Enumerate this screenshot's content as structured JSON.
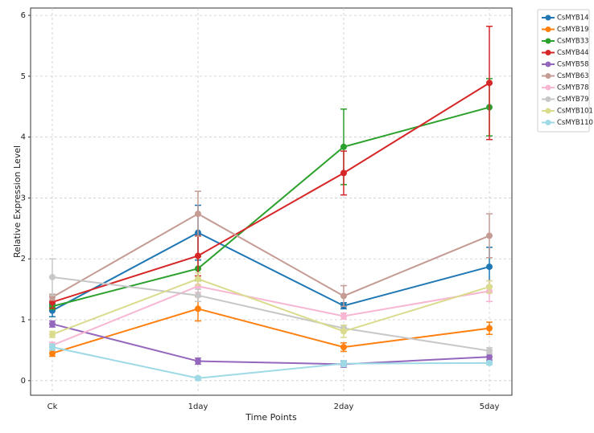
{
  "chart_data": {
    "type": "line",
    "x_label": "Time Points",
    "y_label": "Relative Expression Level",
    "categories": [
      "Ck",
      "1day",
      "2day",
      "5day"
    ],
    "ylim": [
      -0.24,
      6.12
    ],
    "yticks": [
      0,
      1,
      2,
      3,
      4,
      5,
      6
    ],
    "grid": true,
    "legend": "outside-right",
    "series": [
      {
        "name": "CsMYB14",
        "color": "#1f77b4",
        "values": [
          1.15,
          2.43,
          1.23,
          1.87
        ],
        "errors": [
          0.1,
          0.45,
          0.05,
          0.32
        ]
      },
      {
        "name": "CsMYB19",
        "color": "#ff7f0e",
        "values": [
          0.45,
          1.18,
          0.55,
          0.86
        ],
        "errors": [
          0.05,
          0.2,
          0.07,
          0.1
        ]
      },
      {
        "name": "CsMYB33",
        "color": "#2ca02c",
        "values": [
          1.22,
          1.84,
          3.84,
          4.49
        ],
        "errors": [
          0.05,
          0.2,
          0.62,
          0.47
        ]
      },
      {
        "name": "CsMYB44",
        "color": "#d62728",
        "values": [
          1.29,
          2.05,
          3.41,
          4.89
        ],
        "errors": [
          0.1,
          0.33,
          0.36,
          0.93
        ]
      },
      {
        "name": "CsMYB58",
        "color": "#9467bd",
        "values": [
          0.93,
          0.32,
          0.27,
          0.39
        ],
        "errors": [
          0.05,
          0.05,
          0.05,
          0.05
        ]
      },
      {
        "name": "CsMYB63",
        "color": "#c49c94",
        "values": [
          1.37,
          2.74,
          1.39,
          2.38
        ],
        "errors": [
          0.05,
          0.37,
          0.17,
          0.36
        ]
      },
      {
        "name": "CsMYB78",
        "color": "#f7b6d2",
        "values": [
          0.58,
          1.55,
          1.06,
          1.47
        ],
        "errors": [
          0.05,
          0.1,
          0.05,
          0.17
        ]
      },
      {
        "name": "CsMYB79",
        "color": "#c7c7c7",
        "values": [
          1.7,
          1.4,
          0.86,
          0.49
        ],
        "errors": [
          0.3,
          0.1,
          0.05,
          0.05
        ]
      },
      {
        "name": "CsMYB101",
        "color": "#dbdb8d",
        "values": [
          0.76,
          1.67,
          0.81,
          1.54
        ],
        "errors": [
          0.05,
          0.1,
          0.1,
          0.1
        ]
      },
      {
        "name": "CsMYB110",
        "color": "#9edae5",
        "values": [
          0.55,
          0.04,
          0.28,
          0.29
        ],
        "errors": [
          0.05,
          0.03,
          0.05,
          0.03
        ]
      }
    ]
  }
}
